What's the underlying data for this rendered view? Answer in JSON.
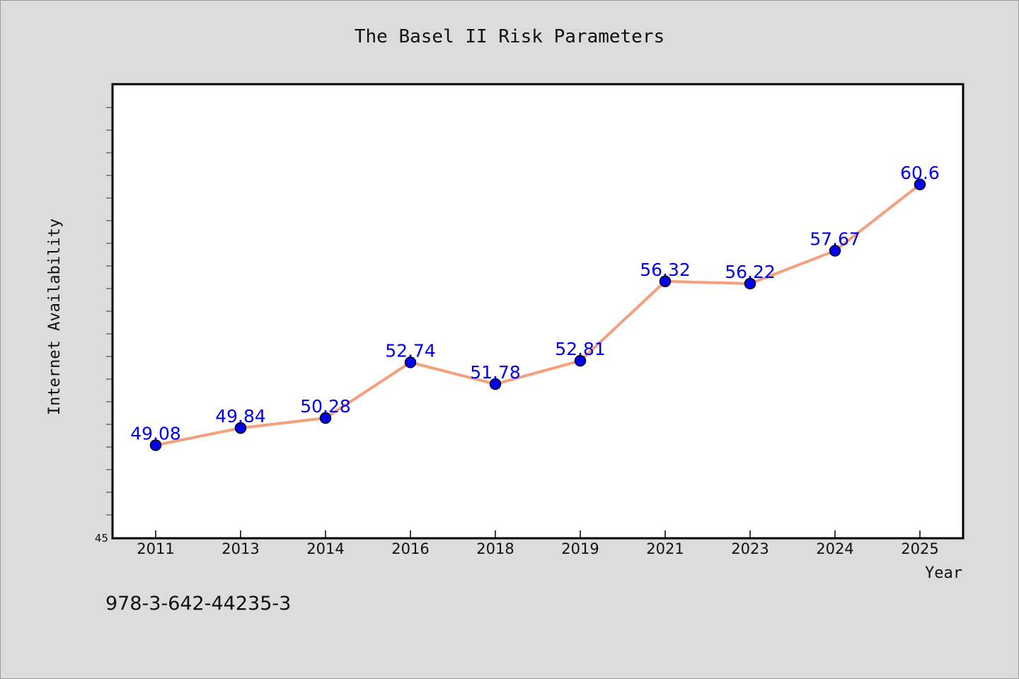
{
  "chart_data": {
    "type": "line",
    "title": "The Basel II Risk Parameters",
    "xlabel": "Year",
    "ylabel": "Internet Availability",
    "categories": [
      "2011",
      "2013",
      "2014",
      "2016",
      "2018",
      "2019",
      "2021",
      "2023",
      "2024",
      "2025"
    ],
    "series": [
      {
        "values": [
          49.08,
          49.84,
          50.28,
          52.74,
          51.78,
          52.81,
          56.32,
          56.22,
          57.67,
          60.6
        ],
        "labels": [
          "49.08",
          "49.84",
          "50.28",
          "52.74",
          "51.78",
          "52.81",
          "56.32",
          "56.22",
          "57.67",
          "60.6"
        ]
      }
    ],
    "ylim": [
      45,
      65
    ],
    "ytick_labels": [
      "45"
    ],
    "grid": false,
    "line_color": "#f4a07c",
    "marker_color": "#0000ee",
    "label_color": "#0000ee",
    "plot_background": "#ffffff",
    "figure_background": "#dcdcdc"
  },
  "footer": {
    "text": "978-3-642-44235-3"
  }
}
